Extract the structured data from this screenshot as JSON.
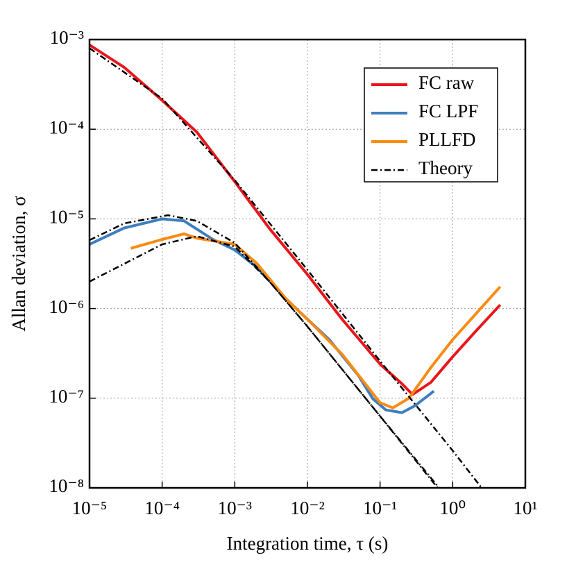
{
  "chart_data": {
    "type": "line",
    "xlabel": "Integration time, τ (s)",
    "ylabel": "Allan deviation, σ",
    "xscale": "log",
    "yscale": "log",
    "grid": true,
    "legend": "upper right",
    "xlim": [
      1e-05,
      10
    ],
    "ylim": [
      1e-08,
      0.001
    ],
    "xticks": [
      {
        "value": 1e-05,
        "label": "10⁻⁵"
      },
      {
        "value": 0.0001,
        "label": "10⁻⁴"
      },
      {
        "value": 0.001,
        "label": "10⁻³"
      },
      {
        "value": 0.01,
        "label": "10⁻²"
      },
      {
        "value": 0.1,
        "label": "10⁻¹"
      },
      {
        "value": 1,
        "label": "10⁰"
      },
      {
        "value": 10,
        "label": "10¹"
      }
    ],
    "yticks": [
      {
        "value": 1e-08,
        "label": "10⁻⁸"
      },
      {
        "value": 1e-07,
        "label": "10⁻⁷"
      },
      {
        "value": 1e-06,
        "label": "10⁻⁶"
      },
      {
        "value": 1e-05,
        "label": "10⁻⁵"
      },
      {
        "value": 0.0001,
        "label": "10⁻⁴"
      },
      {
        "value": 0.001,
        "label": "10⁻³"
      }
    ],
    "series": [
      {
        "name": "FC raw",
        "color": "#e8161b",
        "x": [
          1e-05,
          3e-05,
          0.0001,
          0.0003,
          0.001,
          0.003,
          0.01,
          0.03,
          0.1,
          0.2,
          0.28,
          0.5,
          1,
          2,
          4.5
        ],
        "values": [
          0.00087,
          0.00049,
          0.00021,
          9.3e-05,
          2.6e-05,
          7.8e-06,
          2.4e-06,
          7.6e-07,
          2.4e-07,
          1.45e-07,
          1.1e-07,
          1.5e-07,
          2.9e-07,
          5.4e-07,
          1.1e-06
        ]
      },
      {
        "name": "FC LPF",
        "color": "#3d7fbf",
        "x": [
          1e-05,
          3e-05,
          0.0001,
          0.0002,
          0.0005,
          0.001,
          0.002,
          0.005,
          0.01,
          0.02,
          0.05,
          0.08,
          0.12,
          0.2,
          0.3,
          0.55
        ],
        "values": [
          5.2e-06,
          7.9e-06,
          1e-05,
          9.5e-06,
          5.9e-06,
          4.5e-06,
          2.9e-06,
          1.3e-06,
          7.6e-07,
          4.5e-07,
          1.8e-07,
          9.8e-08,
          7.4e-08,
          6.9e-08,
          8.2e-08,
          1.2e-07
        ]
      },
      {
        "name": "PLLFD",
        "color": "#f98b12",
        "x": [
          3.7e-05,
          0.0001,
          0.0002,
          0.0003,
          0.001,
          0.002,
          0.005,
          0.01,
          0.03,
          0.1,
          0.15,
          0.25,
          0.5,
          1,
          4.5
        ],
        "values": [
          4.7e-06,
          5.9e-06,
          6.8e-06,
          6.1e-06,
          5.2e-06,
          3.2e-06,
          1.3e-06,
          7.6e-07,
          3.1e-07,
          8.9e-08,
          7.8e-08,
          1e-07,
          2.2e-07,
          4.5e-07,
          1.75e-06
        ]
      },
      {
        "name": "Theory",
        "color": "#000000",
        "dash": "9,4,2,4",
        "x": [
          1e-05,
          0.0001,
          0.001,
          0.01,
          0.1,
          1,
          2.5,
          null,
          1e-05,
          3e-05,
          0.00012,
          0.0003,
          0.001,
          0.003,
          0.01,
          0.1,
          0.65,
          null,
          1e-05,
          0.0001,
          0.0003,
          0.001,
          0.003,
          0.01,
          0.1,
          0.62
        ],
        "values": [
          0.0008,
          0.00022,
          2.7e-05,
          2.7e-06,
          2.6e-07,
          2.6e-08,
          1e-08,
          null,
          5.8e-06,
          8.9e-06,
          1.1e-05,
          9.5e-06,
          5.4e-06,
          2e-06,
          6.3e-07,
          6.3e-08,
          1e-08,
          null,
          2e-06,
          5.2e-06,
          6.4e-06,
          4.9e-06,
          2e-06,
          6.3e-07,
          6.3e-08,
          1e-08
        ]
      }
    ]
  }
}
